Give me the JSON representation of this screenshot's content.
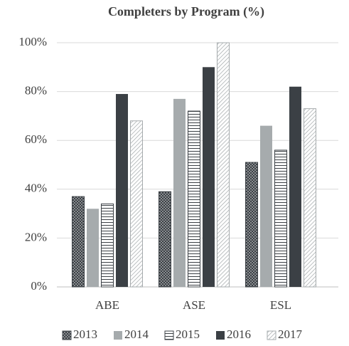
{
  "chart_data": {
    "type": "bar",
    "title": "Completers  by  Program (%)",
    "categories": [
      "ABE",
      "ASE",
      "ESL"
    ],
    "series": [
      {
        "name": "2013",
        "color": "#3b4045",
        "pattern": "dots",
        "values": [
          37,
          39,
          51
        ]
      },
      {
        "name": "2014",
        "color": "#a6abad",
        "pattern": "solid",
        "values": [
          32,
          77,
          66
        ]
      },
      {
        "name": "2015",
        "color": "#3b4045",
        "pattern": "hlines",
        "values": [
          34,
          72,
          56
        ]
      },
      {
        "name": "2016",
        "color": "#3b4045",
        "pattern": "solid",
        "values": [
          79,
          90,
          82
        ]
      },
      {
        "name": "2017",
        "color": "#a6abad",
        "pattern": "diagonal",
        "values": [
          68,
          100,
          73
        ]
      }
    ],
    "ylim": [
      0,
      100
    ],
    "yticks": [
      {
        "value": 0,
        "label": "0%"
      },
      {
        "value": 20,
        "label": "20%"
      },
      {
        "value": 40,
        "label": "40%"
      },
      {
        "value": 60,
        "label": "60%"
      },
      {
        "value": 80,
        "label": "80%"
      },
      {
        "value": 100,
        "label": "100%"
      }
    ],
    "grid": true,
    "legend": "bottom"
  }
}
